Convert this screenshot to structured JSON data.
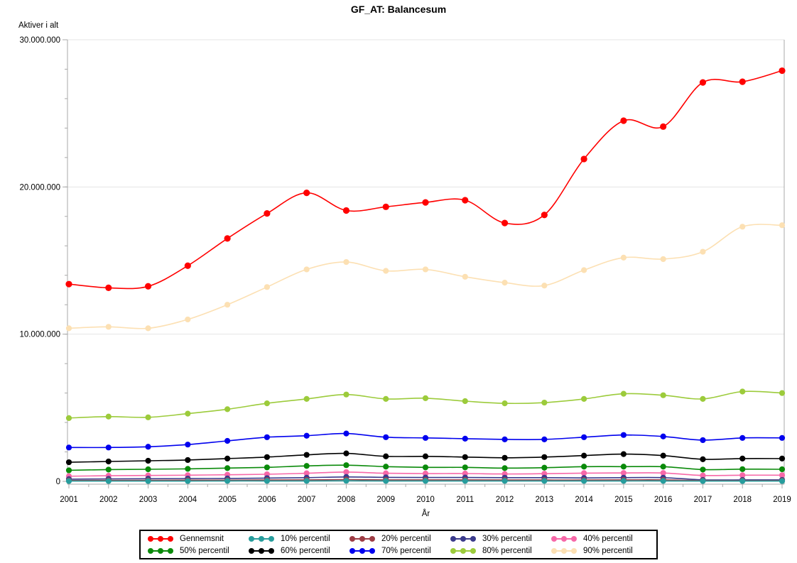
{
  "chart_data": {
    "type": "line",
    "title": "GF_AT: Balancesum",
    "xlabel": "År",
    "ylabel": "Aktiver i alt",
    "x": [
      2001,
      2002,
      2003,
      2004,
      2005,
      2006,
      2007,
      2008,
      2009,
      2010,
      2011,
      2012,
      2013,
      2014,
      2015,
      2016,
      2017,
      2018,
      2019
    ],
    "ylim": [
      0,
      30000000
    ],
    "y_ticks": [
      {
        "value": 0,
        "label": "0"
      },
      {
        "value": 10000000,
        "label": "10.000.000"
      },
      {
        "value": 20000000,
        "label": "20.000.000"
      },
      {
        "value": 30000000,
        "label": "30.000.000"
      }
    ],
    "y_minor_step": 2000000,
    "x_minor_ticks": "half-year",
    "grid": "horizontal",
    "legend_position": "bottom",
    "style": {
      "grid_color": "#E4E4E4",
      "zero_line_color": "#D0D0D0",
      "axis_color": "#A9A9A9",
      "background": "#FFFFFF",
      "legend_border": "#000000",
      "text_color": "#000000"
    },
    "series": [
      {
        "name": "Gennemsnit",
        "color": "#FF0000",
        "values": [
          13400000,
          13150000,
          13250000,
          14650000,
          16500000,
          18200000,
          19600000,
          18400000,
          18650000,
          18950000,
          19100000,
          17550000,
          18100000,
          21900000,
          24500000,
          24100000,
          27100000,
          27150000,
          27900000
        ]
      },
      {
        "name": "10% percentil",
        "color": "#279D9D",
        "values": [
          20000,
          20000,
          20000,
          20000,
          30000,
          30000,
          30000,
          40000,
          30000,
          30000,
          30000,
          30000,
          30000,
          30000,
          30000,
          30000,
          20000,
          20000,
          20000
        ]
      },
      {
        "name": "20% percentil",
        "color": "#9D3C44",
        "values": [
          60000,
          70000,
          70000,
          80000,
          80000,
          90000,
          100000,
          120000,
          100000,
          100000,
          100000,
          90000,
          90000,
          90000,
          100000,
          100000,
          50000,
          50000,
          50000
        ]
      },
      {
        "name": "30% percentil",
        "color": "#3B3B8C",
        "values": [
          150000,
          170000,
          180000,
          190000,
          200000,
          220000,
          250000,
          300000,
          270000,
          260000,
          260000,
          250000,
          250000,
          230000,
          250000,
          250000,
          100000,
          100000,
          100000
        ]
      },
      {
        "name": "40% percentil",
        "color": "#F768A8",
        "values": [
          350000,
          380000,
          400000,
          420000,
          450000,
          480000,
          550000,
          630000,
          550000,
          530000,
          530000,
          500000,
          520000,
          560000,
          570000,
          570000,
          400000,
          420000,
          420000
        ]
      },
      {
        "name": "50% percentil",
        "color": "#0A8A0A",
        "values": [
          750000,
          800000,
          820000,
          850000,
          900000,
          950000,
          1050000,
          1100000,
          1000000,
          950000,
          950000,
          900000,
          930000,
          1000000,
          1000000,
          1000000,
          800000,
          830000,
          820000
        ]
      },
      {
        "name": "60% percentil",
        "color": "#000000",
        "values": [
          1300000,
          1350000,
          1400000,
          1450000,
          1550000,
          1650000,
          1800000,
          1900000,
          1700000,
          1700000,
          1650000,
          1600000,
          1650000,
          1750000,
          1850000,
          1750000,
          1500000,
          1550000,
          1550000
        ]
      },
      {
        "name": "70% percentil",
        "color": "#0000EE",
        "values": [
          2300000,
          2300000,
          2350000,
          2500000,
          2750000,
          3000000,
          3100000,
          3250000,
          3000000,
          2950000,
          2900000,
          2850000,
          2850000,
          3000000,
          3150000,
          3050000,
          2800000,
          2950000,
          2950000
        ]
      },
      {
        "name": "80% percentil",
        "color": "#9CCB3B",
        "values": [
          4300000,
          4400000,
          4350000,
          4600000,
          4900000,
          5300000,
          5600000,
          5900000,
          5600000,
          5650000,
          5450000,
          5300000,
          5350000,
          5600000,
          5950000,
          5850000,
          5600000,
          6100000,
          6000000
        ]
      },
      {
        "name": "90% percentil",
        "color": "#FCE0B3",
        "values": [
          10400000,
          10500000,
          10400000,
          11000000,
          12000000,
          13200000,
          14400000,
          14900000,
          14300000,
          14400000,
          13900000,
          13500000,
          13300000,
          14350000,
          15200000,
          15100000,
          15600000,
          17300000,
          17400000
        ]
      }
    ]
  }
}
